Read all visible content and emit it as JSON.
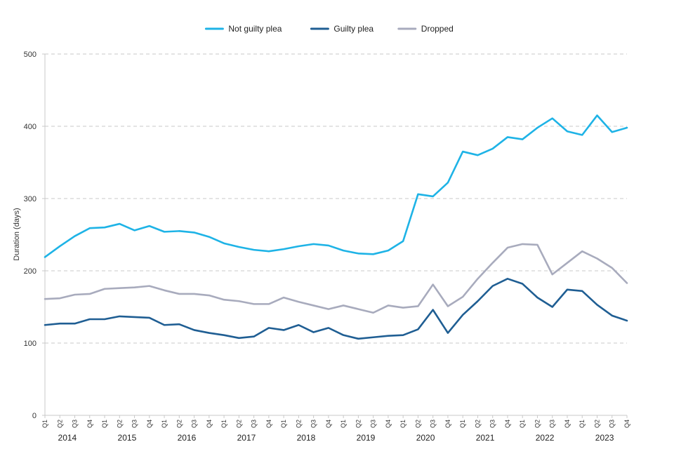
{
  "chart_data": {
    "type": "line",
    "title": "",
    "xlabel": "",
    "ylabel": "Duration (days)",
    "ylim": [
      0,
      500
    ],
    "yticks": [
      0,
      100,
      200,
      300,
      400,
      500
    ],
    "grid": "horizontal-dashed",
    "legend_position": "top-center",
    "quarters": [
      "Q1",
      "Q2",
      "Q3",
      "Q4",
      "Q1",
      "Q2",
      "Q3",
      "Q4",
      "Q1",
      "Q2",
      "Q3",
      "Q4",
      "Q1",
      "Q2",
      "Q3",
      "Q4",
      "Q1",
      "Q2",
      "Q3",
      "Q4",
      "Q1",
      "Q2",
      "Q3",
      "Q4",
      "Q1",
      "Q2",
      "Q3",
      "Q4",
      "Q1",
      "Q2",
      "Q3",
      "Q4",
      "Q1",
      "Q2",
      "Q3",
      "Q4",
      "Q1",
      "Q2",
      "Q3",
      "Q4"
    ],
    "years": [
      "2014",
      "2015",
      "2016",
      "2017",
      "2018",
      "2019",
      "2020",
      "2021",
      "2022",
      "2023"
    ],
    "series": [
      {
        "name": "Not guilty plea",
        "color": "#1eb3e6",
        "values": [
          219,
          234,
          248,
          259,
          260,
          265,
          256,
          262,
          254,
          255,
          253,
          247,
          238,
          233,
          229,
          227,
          230,
          234,
          237,
          235,
          228,
          224,
          223,
          228,
          241,
          306,
          303,
          322,
          365,
          360,
          369,
          385,
          382,
          398,
          411,
          393,
          388,
          415,
          392,
          398
        ]
      },
      {
        "name": "Guilty plea",
        "color": "#1f5e93",
        "values": [
          125,
          127,
          127,
          133,
          133,
          137,
          136,
          135,
          125,
          126,
          118,
          114,
          111,
          107,
          109,
          121,
          118,
          125,
          115,
          121,
          111,
          106,
          108,
          110,
          111,
          119,
          146,
          114,
          139,
          158,
          179,
          189,
          182,
          163,
          150,
          174,
          172,
          153,
          138,
          131
        ]
      },
      {
        "name": "Dropped",
        "color": "#a8abbd",
        "values": [
          161,
          162,
          167,
          168,
          175,
          176,
          177,
          179,
          173,
          168,
          168,
          166,
          160,
          158,
          154,
          154,
          163,
          157,
          152,
          147,
          152,
          147,
          142,
          152,
          149,
          151,
          181,
          151,
          164,
          189,
          211,
          232,
          237,
          236,
          195,
          211,
          227,
          217,
          204,
          183
        ]
      }
    ]
  }
}
